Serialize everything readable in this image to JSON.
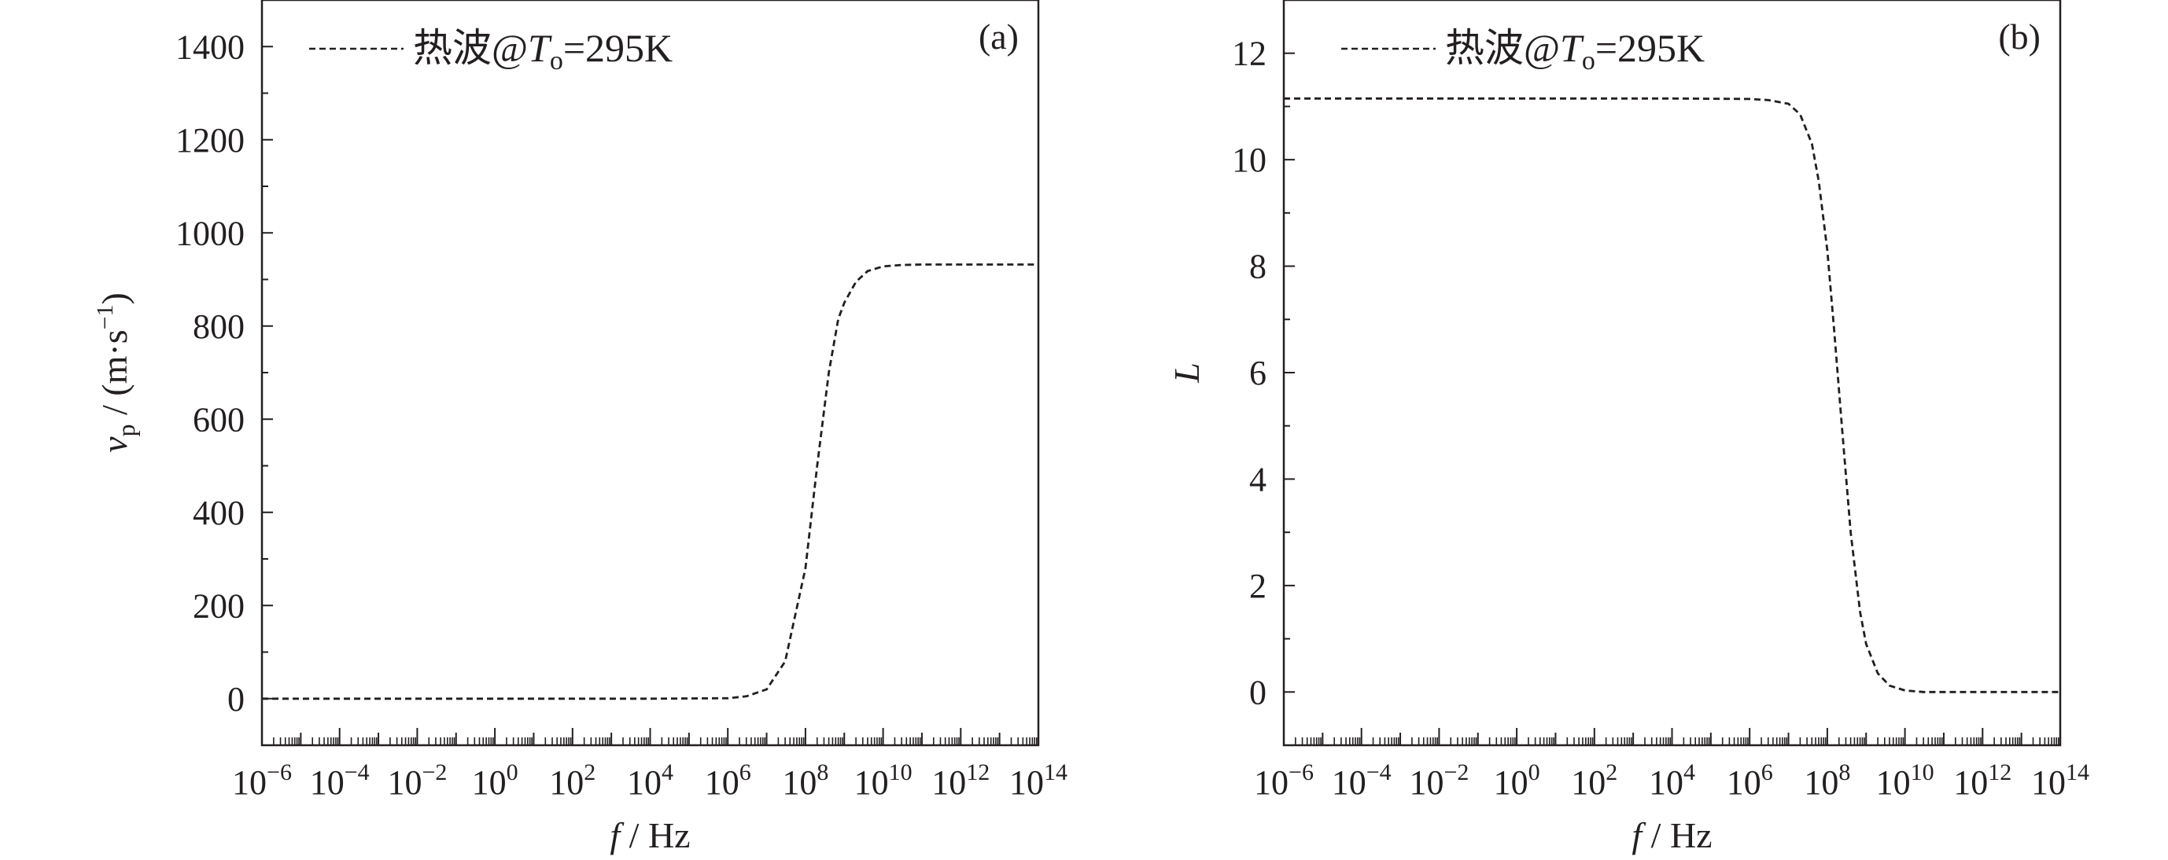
{
  "chart_data": [
    {
      "type": "line",
      "panel_label": "(a)",
      "xlabel": {
        "main": "f",
        "unit": " / Hz"
      },
      "ylabel": {
        "main": "v",
        "sub": "p",
        "mid": " / (m·s",
        "sup": "−1",
        "end": ")"
      },
      "x_scale": "log",
      "xlim": [
        1e-06,
        100000000000000.0
      ],
      "ylim": [
        -100,
        1500
      ],
      "x_tick_labels": [
        {
          "base": "10",
          "exp": "−6"
        },
        {
          "base": "10",
          "exp": "−4"
        },
        {
          "base": "10",
          "exp": "−2"
        },
        {
          "base": "10",
          "exp": "0"
        },
        {
          "base": "10",
          "exp": "2"
        },
        {
          "base": "10",
          "exp": "4"
        },
        {
          "base": "10",
          "exp": "6"
        },
        {
          "base": "10",
          "exp": "8"
        },
        {
          "base": "10",
          "exp": "10"
        },
        {
          "base": "10",
          "exp": "12"
        },
        {
          "base": "10",
          "exp": "14"
        }
      ],
      "y_ticks": [
        0,
        200,
        400,
        600,
        800,
        1000,
        1200,
        1400
      ],
      "y_tick_labels": [
        "0",
        "200",
        "400",
        "600",
        "800",
        "1000",
        "1200",
        "1400"
      ],
      "legend": {
        "position": "top-left",
        "pre": "热波@",
        "T": "T",
        "sub": "o",
        "post": "=295K"
      },
      "series": [
        {
          "name": "热波@To=295K",
          "style": "dashed",
          "color": "#231f20",
          "x": [
            1e-06,
            0.0001,
            0.01,
            1,
            100,
            10000.0,
            1000000.0,
            3000000.0,
            10000000.0,
            30000000.0,
            100000000.0,
            200000000.0,
            400000000.0,
            700000000.0,
            1000000000.0,
            2000000000.0,
            4000000000.0,
            10000000000.0,
            30000000000.0,
            100000000000.0,
            1000000000000.0,
            10000000000000.0,
            100000000000000.0
          ],
          "y": [
            0,
            0,
            0,
            0,
            0,
            0,
            1,
            5,
            20,
            80,
            280,
            500,
            700,
            815,
            850,
            895,
            918,
            928,
            931,
            932,
            932,
            932,
            932
          ]
        }
      ]
    },
    {
      "type": "line",
      "panel_label": "(b)",
      "xlabel": {
        "main": "f",
        "unit": " / Hz"
      },
      "ylabel": {
        "main": "L"
      },
      "x_scale": "log",
      "xlim": [
        1e-06,
        100000000000000.0
      ],
      "ylim": [
        -1,
        13
      ],
      "x_tick_labels": [
        {
          "base": "10",
          "exp": "−6"
        },
        {
          "base": "10",
          "exp": "−4"
        },
        {
          "base": "10",
          "exp": "−2"
        },
        {
          "base": "10",
          "exp": "0"
        },
        {
          "base": "10",
          "exp": "2"
        },
        {
          "base": "10",
          "exp": "4"
        },
        {
          "base": "10",
          "exp": "6"
        },
        {
          "base": "10",
          "exp": "8"
        },
        {
          "base": "10",
          "exp": "10"
        },
        {
          "base": "10",
          "exp": "12"
        },
        {
          "base": "10",
          "exp": "14"
        }
      ],
      "y_ticks": [
        0,
        2,
        4,
        6,
        8,
        10,
        12
      ],
      "y_tick_labels": [
        "0",
        "2",
        "4",
        "6",
        "8",
        "10",
        "12"
      ],
      "legend": {
        "position": "top-left",
        "pre": "热波@",
        "T": "T",
        "sub": "o",
        "post": "=295K"
      },
      "series": [
        {
          "name": "热波@To=295K",
          "style": "dashed",
          "color": "#231f20",
          "x": [
            1e-06,
            0.0001,
            0.01,
            1,
            100,
            10000.0,
            1000000.0,
            3000000.0,
            10000000.0,
            20000000.0,
            40000000.0,
            60000000.0,
            100000000.0,
            150000000.0,
            250000000.0,
            400000000.0,
            700000000.0,
            1000000000.0,
            2000000000.0,
            4000000000.0,
            10000000000.0,
            30000000000.0,
            100000000000.0,
            1000000000000.0,
            10000000000000.0,
            100000000000000.0
          ],
          "y": [
            11.15,
            11.15,
            11.15,
            11.15,
            11.15,
            11.15,
            11.14,
            11.12,
            11.05,
            10.85,
            10.3,
            9.6,
            8.3,
            6.8,
            4.8,
            3.0,
            1.5,
            0.9,
            0.35,
            0.12,
            0.03,
            0.0,
            0.0,
            0.0,
            0.0,
            0.0
          ]
        }
      ]
    }
  ]
}
